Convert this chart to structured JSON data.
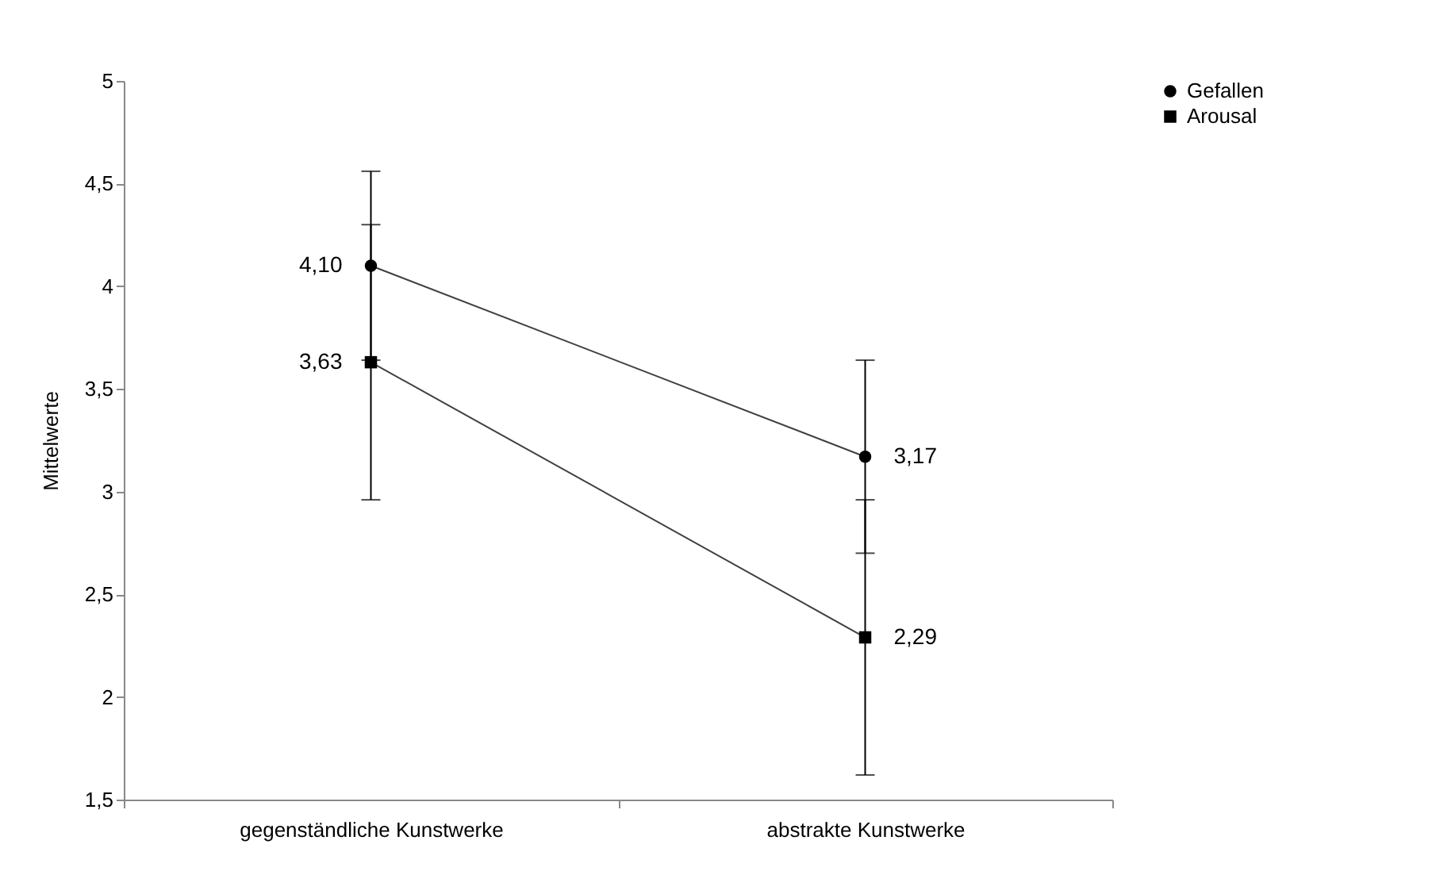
{
  "chart_data": {
    "type": "line",
    "ylabel": "Mittelwerte",
    "categories": [
      "gegenständliche Kunstwerke",
      "abstrakte Kunstwerke"
    ],
    "series": [
      {
        "name": "Gefallen",
        "color": "#000000",
        "marker": "circle",
        "values": [
          4.1,
          3.17
        ],
        "errors": [
          0.46,
          0.47
        ],
        "value_labels": [
          "4,10",
          "3,17"
        ]
      },
      {
        "name": "Arousal",
        "color": "#000000",
        "marker": "square",
        "values": [
          3.63,
          2.29
        ],
        "errors": [
          0.67,
          0.67
        ],
        "value_labels": [
          "3,63",
          "2,29"
        ]
      }
    ],
    "ylim": [
      1.5,
      5
    ],
    "yticks": [
      {
        "value": 1.5,
        "label": "1,5"
      },
      2,
      {
        "value": 2.5,
        "label": "2,5"
      },
      3,
      {
        "value": 3.5,
        "label": "3,5"
      },
      4,
      {
        "value": 4.5,
        "label": "4,5"
      },
      5
    ],
    "grid": false,
    "legend": "right",
    "line_style": "solid"
  }
}
